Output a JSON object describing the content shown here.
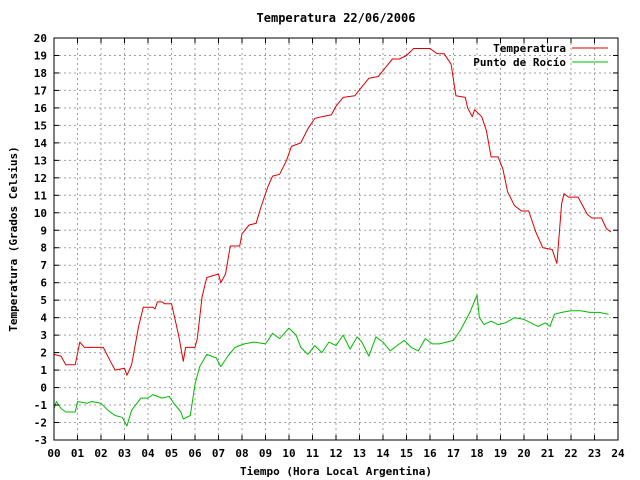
{
  "chart_data": {
    "type": "line",
    "title": "Temperatura 22/06/2006",
    "xlabel": "Tiempo (Hora Local Argentina)",
    "ylabel": "Temperatura (Grados Celsius)",
    "xlim": [
      0,
      24
    ],
    "ylim": [
      -3,
      20
    ],
    "xticks": [
      "00",
      "01",
      "02",
      "03",
      "04",
      "05",
      "06",
      "07",
      "08",
      "09",
      "10",
      "11",
      "12",
      "13",
      "14",
      "15",
      "16",
      "17",
      "18",
      "19",
      "20",
      "21",
      "22",
      "23",
      "24"
    ],
    "yticks": [
      -3,
      -2,
      -1,
      0,
      1,
      2,
      3,
      4,
      5,
      6,
      7,
      8,
      9,
      10,
      11,
      12,
      13,
      14,
      15,
      16,
      17,
      18,
      19,
      20
    ],
    "grid": true,
    "legend_position": "top-right",
    "series": [
      {
        "name": "Temperatura",
        "color": "#dd0000",
        "points": [
          [
            0.0,
            1.9
          ],
          [
            0.3,
            1.8
          ],
          [
            0.5,
            1.3
          ],
          [
            0.9,
            1.3
          ],
          [
            1.1,
            2.6
          ],
          [
            1.3,
            2.3
          ],
          [
            2.1,
            2.3
          ],
          [
            2.4,
            1.5
          ],
          [
            2.6,
            1.0
          ],
          [
            3.0,
            1.1
          ],
          [
            3.1,
            0.7
          ],
          [
            3.3,
            1.3
          ],
          [
            3.6,
            3.5
          ],
          [
            3.8,
            4.6
          ],
          [
            4.2,
            4.6
          ],
          [
            4.3,
            4.5
          ],
          [
            4.4,
            4.9
          ],
          [
            4.6,
            4.9
          ],
          [
            4.7,
            4.8
          ],
          [
            5.0,
            4.8
          ],
          [
            5.3,
            3.0
          ],
          [
            5.5,
            1.5
          ],
          [
            5.6,
            2.3
          ],
          [
            6.0,
            2.3
          ],
          [
            6.1,
            2.8
          ],
          [
            6.3,
            5.2
          ],
          [
            6.5,
            6.3
          ],
          [
            7.0,
            6.5
          ],
          [
            7.1,
            6.0
          ],
          [
            7.3,
            6.5
          ],
          [
            7.5,
            8.1
          ],
          [
            7.9,
            8.1
          ],
          [
            8.0,
            8.8
          ],
          [
            8.3,
            9.3
          ],
          [
            8.6,
            9.4
          ],
          [
            8.8,
            10.3
          ],
          [
            9.1,
            11.5
          ],
          [
            9.3,
            12.1
          ],
          [
            9.6,
            12.2
          ],
          [
            9.9,
            13.0
          ],
          [
            10.1,
            13.8
          ],
          [
            10.5,
            14.0
          ],
          [
            10.8,
            14.8
          ],
          [
            11.1,
            15.4
          ],
          [
            11.4,
            15.5
          ],
          [
            11.8,
            15.6
          ],
          [
            12.0,
            16.1
          ],
          [
            12.3,
            16.6
          ],
          [
            12.8,
            16.7
          ],
          [
            13.1,
            17.2
          ],
          [
            13.4,
            17.7
          ],
          [
            13.8,
            17.8
          ],
          [
            14.1,
            18.3
          ],
          [
            14.4,
            18.8
          ],
          [
            14.7,
            18.8
          ],
          [
            15.0,
            19.0
          ],
          [
            15.3,
            19.4
          ],
          [
            16.0,
            19.4
          ],
          [
            16.3,
            19.1
          ],
          [
            16.6,
            19.1
          ],
          [
            16.9,
            18.5
          ],
          [
            17.1,
            16.7
          ],
          [
            17.5,
            16.6
          ],
          [
            17.6,
            16.0
          ],
          [
            17.8,
            15.5
          ],
          [
            17.9,
            15.9
          ],
          [
            18.2,
            15.5
          ],
          [
            18.4,
            14.7
          ],
          [
            18.6,
            13.2
          ],
          [
            18.9,
            13.2
          ],
          [
            19.1,
            12.5
          ],
          [
            19.3,
            11.2
          ],
          [
            19.6,
            10.4
          ],
          [
            19.9,
            10.1
          ],
          [
            20.2,
            10.1
          ],
          [
            20.5,
            8.9
          ],
          [
            20.8,
            8.0
          ],
          [
            21.2,
            7.9
          ],
          [
            21.4,
            7.1
          ],
          [
            21.6,
            10.5
          ],
          [
            21.7,
            11.1
          ],
          [
            21.9,
            10.9
          ],
          [
            22.3,
            10.9
          ],
          [
            22.7,
            9.9
          ],
          [
            22.9,
            9.7
          ],
          [
            23.3,
            9.7
          ],
          [
            23.5,
            9.1
          ],
          [
            23.7,
            8.9
          ]
        ]
      },
      {
        "name": "Punto de Rocío",
        "color": "#00bb00",
        "points": [
          [
            0.0,
            -1.2
          ],
          [
            0.1,
            -0.8
          ],
          [
            0.3,
            -1.2
          ],
          [
            0.5,
            -1.4
          ],
          [
            0.9,
            -1.4
          ],
          [
            1.0,
            -0.8
          ],
          [
            1.4,
            -0.9
          ],
          [
            1.6,
            -0.8
          ],
          [
            2.0,
            -0.9
          ],
          [
            2.3,
            -1.3
          ],
          [
            2.6,
            -1.6
          ],
          [
            2.9,
            -1.7
          ],
          [
            3.1,
            -2.2
          ],
          [
            3.3,
            -1.3
          ],
          [
            3.7,
            -0.6
          ],
          [
            4.0,
            -0.6
          ],
          [
            4.2,
            -0.4
          ],
          [
            4.6,
            -0.6
          ],
          [
            4.9,
            -0.5
          ],
          [
            5.1,
            -0.9
          ],
          [
            5.4,
            -1.4
          ],
          [
            5.5,
            -1.8
          ],
          [
            5.8,
            -1.6
          ],
          [
            6.0,
            0.2
          ],
          [
            6.2,
            1.2
          ],
          [
            6.5,
            1.9
          ],
          [
            6.9,
            1.7
          ],
          [
            7.1,
            1.2
          ],
          [
            7.4,
            1.8
          ],
          [
            7.7,
            2.3
          ],
          [
            8.1,
            2.5
          ],
          [
            8.5,
            2.6
          ],
          [
            9.0,
            2.5
          ],
          [
            9.3,
            3.1
          ],
          [
            9.6,
            2.8
          ],
          [
            10.0,
            3.4
          ],
          [
            10.3,
            3.0
          ],
          [
            10.5,
            2.3
          ],
          [
            10.8,
            1.9
          ],
          [
            11.1,
            2.4
          ],
          [
            11.4,
            2.0
          ],
          [
            11.7,
            2.6
          ],
          [
            12.0,
            2.4
          ],
          [
            12.3,
            3.0
          ],
          [
            12.6,
            2.2
          ],
          [
            12.9,
            2.9
          ],
          [
            13.1,
            2.6
          ],
          [
            13.4,
            1.8
          ],
          [
            13.7,
            2.9
          ],
          [
            14.0,
            2.6
          ],
          [
            14.3,
            2.1
          ],
          [
            14.6,
            2.4
          ],
          [
            14.9,
            2.7
          ],
          [
            15.2,
            2.3
          ],
          [
            15.5,
            2.1
          ],
          [
            15.8,
            2.8
          ],
          [
            16.1,
            2.5
          ],
          [
            16.4,
            2.5
          ],
          [
            16.7,
            2.6
          ],
          [
            17.0,
            2.7
          ],
          [
            17.3,
            3.3
          ],
          [
            17.7,
            4.3
          ],
          [
            18.0,
            5.3
          ],
          [
            18.1,
            4.0
          ],
          [
            18.3,
            3.6
          ],
          [
            18.6,
            3.8
          ],
          [
            18.9,
            3.6
          ],
          [
            19.2,
            3.7
          ],
          [
            19.6,
            4.0
          ],
          [
            20.0,
            3.9
          ],
          [
            20.3,
            3.7
          ],
          [
            20.6,
            3.5
          ],
          [
            20.9,
            3.7
          ],
          [
            21.1,
            3.5
          ],
          [
            21.3,
            4.2
          ],
          [
            21.6,
            4.3
          ],
          [
            22.0,
            4.4
          ],
          [
            22.4,
            4.4
          ],
          [
            22.8,
            4.3
          ],
          [
            23.2,
            4.3
          ],
          [
            23.6,
            4.2
          ]
        ]
      }
    ]
  }
}
